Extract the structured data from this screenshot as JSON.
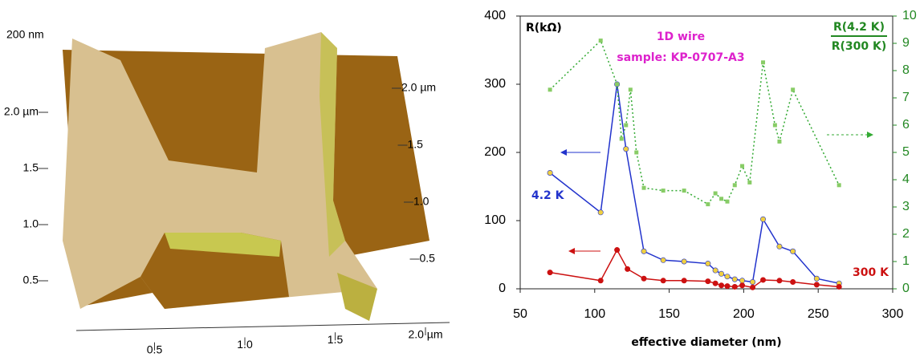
{
  "chart_data": [
    {
      "type": "surface",
      "z_label": "200 nm",
      "xlim": [
        0,
        2
      ],
      "xticks": [
        0.5,
        {
          "value": 1,
          "label": "1.0"
        },
        1.5,
        {
          "value": 2,
          "label": "2.0 µm"
        }
      ],
      "ylim": [
        0,
        2
      ],
      "yticks": [
        0.5,
        {
          "value": 1,
          "label": "1.0"
        },
        1.5,
        {
          "value": 2,
          "label": "2.0 µm"
        }
      ],
      "y2lim": [
        0,
        2
      ],
      "y2ticks": [
        0.5,
        {
          "value": 1,
          "label": "1.0"
        },
        1.5,
        {
          "value": 2,
          "label": "2.0 µm"
        }
      ]
    },
    {
      "type": "line",
      "title": "1D wire",
      "subtitle": "sample: KP-0707-A3",
      "x_label": "effective diameter (nm)",
      "y_label": "R(kΩ)",
      "y2_label": [
        "R(4.2 K)",
        "R(300 K)"
      ],
      "xlim": [
        50,
        300
      ],
      "xticks": [
        50,
        100,
        150,
        200,
        250,
        300
      ],
      "ylim": [
        0,
        400
      ],
      "yticks": [
        0,
        100,
        200,
        300,
        400
      ],
      "y2lim": [
        0,
        10
      ],
      "y2ticks": [
        0,
        1,
        2,
        3,
        4,
        5,
        6,
        7,
        8,
        9,
        10
      ],
      "series": [
        {
          "name": "4.2 K",
          "color": "#2233cc",
          "marker_color": "#f0d040",
          "x": [
            70,
            104,
            115,
            121,
            133,
            146,
            160,
            176,
            181,
            185,
            189,
            194,
            199,
            206,
            213,
            224,
            233,
            249,
            264
          ],
          "values": [
            170,
            112,
            300,
            205,
            55,
            42,
            40,
            37,
            27,
            22,
            18,
            14,
            12,
            10,
            102,
            62,
            55,
            15,
            8
          ]
        },
        {
          "name": "300 K",
          "color": "#cc1111",
          "marker_color": "#cc1111",
          "x": [
            70,
            104,
            115,
            122,
            133,
            146,
            160,
            176,
            181,
            185,
            189,
            194,
            199,
            206,
            213,
            224,
            233,
            249,
            264
          ],
          "values": [
            24,
            12,
            57,
            29,
            15,
            12,
            12,
            11,
            8,
            5,
            4,
            3,
            5,
            2,
            13,
            12,
            10,
            6,
            3
          ]
        },
        {
          "color": "#33aa33",
          "marker_color": "#88cc66",
          "axis": "y2",
          "dashed": true,
          "x": [
            70,
            104,
            115,
            118,
            121,
            124,
            128,
            133,
            146,
            160,
            176,
            181,
            185,
            189,
            194,
            199,
            204,
            213,
            221,
            224,
            233,
            264
          ],
          "values": [
            7.3,
            9.1,
            7.5,
            5.5,
            6,
            7.3,
            5,
            3.7,
            3.6,
            3.6,
            3.1,
            3.5,
            3.3,
            3.2,
            3.8,
            4.5,
            3.9,
            8.3,
            6,
            5.4,
            7.3,
            3.8
          ]
        }
      ]
    }
  ]
}
